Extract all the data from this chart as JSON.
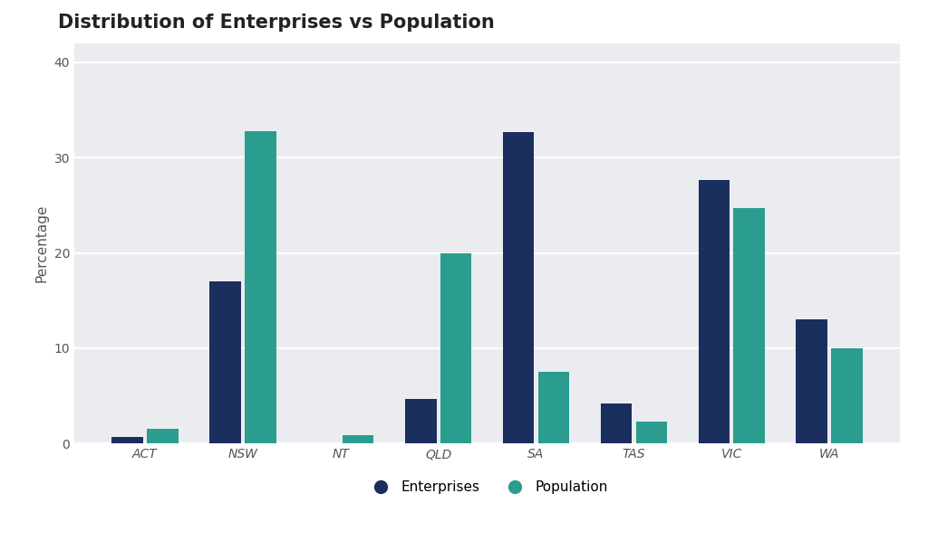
{
  "title": "Distribution of Enterprises vs Population",
  "categories": [
    "ACT",
    "NSW",
    "NT",
    "QLD",
    "SA",
    "TAS",
    "VIC",
    "WA"
  ],
  "enterprises": [
    0.7,
    17.0,
    0.0,
    4.7,
    32.7,
    4.2,
    27.7,
    13.0
  ],
  "population": [
    1.6,
    32.8,
    0.9,
    20.0,
    7.5,
    2.3,
    24.7,
    10.0
  ],
  "enterprise_color": "#1b2f5e",
  "population_color": "#2a9d8f",
  "ylabel": "Percentage",
  "ylim": [
    0,
    42
  ],
  "yticks": [
    0,
    10,
    20,
    30,
    40
  ],
  "plot_bg_color": "#eaecf0",
  "fig_bg_color": "#ffffff",
  "title_fontsize": 15,
  "axis_fontsize": 11,
  "tick_fontsize": 10,
  "legend_fontsize": 11,
  "bar_width": 0.32,
  "bar_gap": 0.04
}
